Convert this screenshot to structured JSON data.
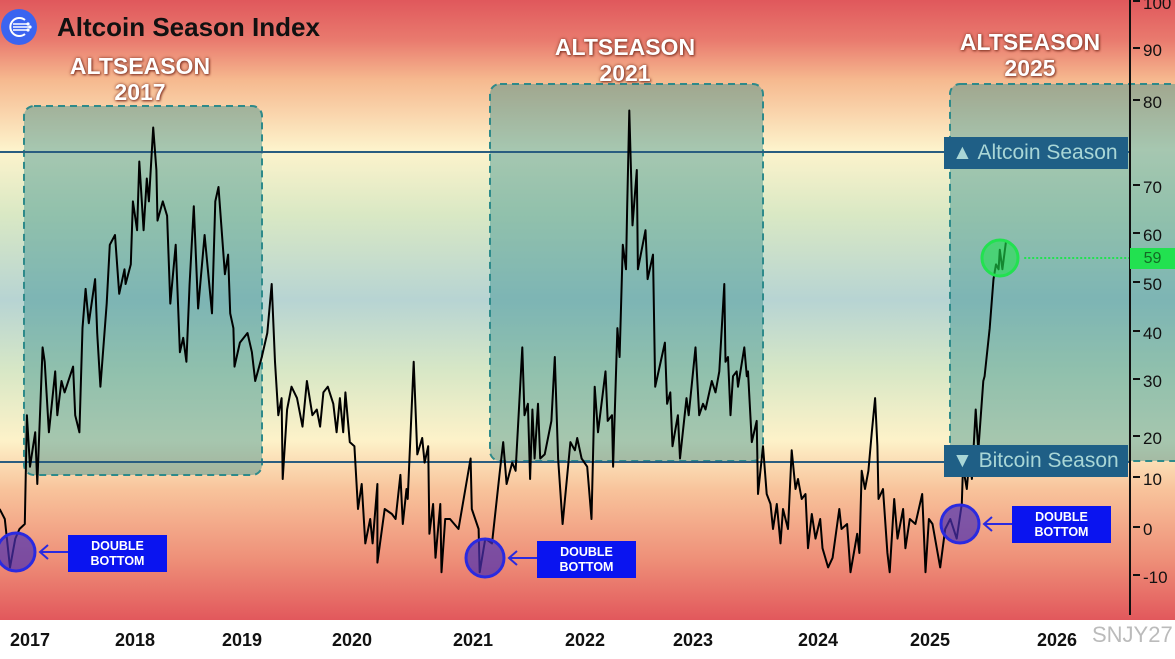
{
  "header": {
    "title": "Altcoin Season Index",
    "logo_icon": "network-logo-icon"
  },
  "annotations": {
    "altseasons": [
      {
        "line1": "ALTSEASON",
        "line2": "2017"
      },
      {
        "line1": "ALTSEASON",
        "line2": "2021"
      },
      {
        "line1": "ALTSEASON",
        "line2": "2025"
      }
    ],
    "double_bottom": [
      {
        "line1": "DOUBLE",
        "line2": "BOTTOM"
      },
      {
        "line1": "DOUBLE",
        "line2": "BOTTOM"
      },
      {
        "line1": "DOUBLE",
        "line2": "BOTTOM"
      }
    ],
    "altcoin_season": {
      "icon": "triangle-up-icon",
      "label": "Altcoin Season"
    },
    "bitcoin_season": {
      "icon": "triangle-down-icon",
      "label": "Bitcoin Season"
    },
    "current_value": "59",
    "watermark": "SNJY27"
  },
  "colors": {
    "line": "#000000",
    "altseason_zone": "#2e8a8a",
    "threshold_line": "#2a5d80",
    "current_marker": "#22e150",
    "double_bottom": "#2a2ae0"
  },
  "chart_data": {
    "type": "line",
    "title": "Altcoin Season Index",
    "xlabel": "",
    "ylabel": "",
    "x_ticks": [
      "2017",
      "2018",
      "2019",
      "2020",
      "2021",
      "2022",
      "2023",
      "2024",
      "2025",
      "2026"
    ],
    "y_ticks": [
      100,
      90,
      80,
      70,
      60,
      50,
      40,
      30,
      20,
      10,
      0,
      -10
    ],
    "ylim": [
      -10,
      100
    ],
    "grid": false,
    "series": [
      {
        "x": [
          2016.71,
          2016.76,
          2016.81,
          2016.86,
          2016.9,
          2016.95,
          2016.97,
          2017.0,
          2017.05,
          2017.07,
          2017.12,
          2017.14,
          2017.18,
          2017.24,
          2017.26,
          2017.3,
          2017.33,
          2017.41,
          2017.43,
          2017.47,
          2017.5,
          2017.53,
          2017.56,
          2017.62,
          2017.64,
          2017.67,
          2017.73,
          2017.76,
          2017.81,
          2017.85,
          2017.9,
          2017.91,
          2017.96,
          2017.98,
          2018.02,
          2018.04,
          2018.08,
          2018.11,
          2018.13,
          2018.17,
          2018.2,
          2018.21,
          2018.26,
          2018.3,
          2018.33,
          2018.38,
          2018.42,
          2018.45,
          2018.48,
          2018.51,
          2018.55,
          2018.59,
          2018.65,
          2018.72,
          2018.75,
          2018.78,
          2018.84,
          2018.87,
          2018.89,
          2018.92,
          2018.93,
          2018.98,
          2019.05,
          2019.09,
          2019.12,
          2019.18,
          2019.23,
          2019.27,
          2019.3,
          2019.33,
          2019.36,
          2019.37,
          2019.41,
          2019.45,
          2019.5,
          2019.55,
          2019.59,
          2019.64,
          2019.68,
          2019.71,
          2019.74,
          2019.78,
          2019.83,
          2019.86,
          2019.89,
          2019.92,
          2019.94,
          2019.98,
          2020.02,
          2020.05,
          2020.08,
          2020.11,
          2020.15,
          2020.17,
          2020.21,
          2020.21,
          2020.27,
          2020.33,
          2020.36,
          2020.4,
          2020.42,
          2020.45,
          2020.46,
          2020.51,
          2020.54,
          2020.58,
          2020.6,
          2020.63,
          2020.64,
          2020.67,
          2020.69,
          2020.73,
          2020.74,
          2020.77,
          2020.81,
          2020.88,
          2020.98,
          2020.99,
          2021.05,
          2021.06,
          2021.11,
          2021.17,
          2021.24,
          2021.27,
          2021.3,
          2021.35,
          2021.38,
          2021.44,
          2021.46,
          2021.49,
          2021.51,
          2021.53,
          2021.55,
          2021.58,
          2021.6,
          2021.64,
          2021.7,
          2021.73,
          2021.76,
          2021.8,
          2021.87,
          2021.91,
          2021.93,
          2021.97,
          2022.02,
          2022.06,
          2022.09,
          2022.12,
          2022.19,
          2022.21,
          2022.25,
          2022.26,
          2022.3,
          2022.32,
          2022.35,
          2022.38,
          2022.39,
          2022.41,
          2022.44,
          2022.48,
          2022.49,
          2022.56,
          2022.58,
          2022.63,
          2022.65,
          2022.74,
          2022.76,
          2022.79,
          2022.81,
          2022.86,
          2022.88,
          2022.94,
          2022.96,
          2023.02,
          2023.05,
          2023.08,
          2023.1,
          2023.15,
          2023.18,
          2023.21,
          2023.25,
          2023.26,
          2023.28,
          2023.3,
          2023.32,
          2023.35,
          2023.36,
          2023.41,
          2023.43,
          2023.44,
          2023.47,
          2023.51,
          2023.52,
          2023.56,
          2023.59,
          2023.62,
          2023.64,
          2023.67,
          2023.7,
          2023.72,
          2023.76,
          2023.79,
          2023.82,
          2023.84,
          2023.87,
          2023.9,
          2023.92,
          2023.95,
          2023.98,
          2024.02,
          2024.04,
          2024.09,
          2024.13,
          2024.19,
          2024.21,
          2024.26,
          2024.29,
          2024.35,
          2024.37,
          2024.39,
          2024.42,
          2024.45,
          2024.48,
          2024.51,
          2024.53,
          2024.54,
          2024.58,
          2024.62,
          2024.64,
          2024.68,
          2024.71,
          2024.76,
          2024.78,
          2024.82,
          2024.87,
          2024.93,
          2024.96,
          2024.99,
          2025.02,
          2025.08,
          2025.12,
          2025.16,
          2025.21,
          2025.25,
          2025.26,
          2025.29,
          2025.31,
          2025.33,
          2025.36,
          2025.38,
          2025.42,
          2025.43,
          2025.47,
          2025.5,
          2025.52,
          2025.54,
          2025.55,
          2025.57,
          2025.6
        ],
        "y": [
          4,
          2,
          -8,
          -2,
          0,
          1,
          24,
          13,
          21,
          9,
          37,
          34,
          21,
          32,
          24,
          30,
          28,
          33,
          24,
          21,
          41,
          49,
          42,
          51,
          40,
          29,
          46,
          58,
          60,
          48,
          53,
          50,
          54,
          67,
          61,
          73,
          61,
          71,
          67,
          77,
          72,
          63,
          67,
          64,
          46,
          58,
          36,
          39,
          34,
          50,
          66,
          45,
          60,
          44,
          67,
          70,
          52,
          56,
          44,
          41,
          33,
          38,
          40,
          36,
          30,
          35,
          40,
          50,
          34,
          24,
          27,
          10,
          25,
          29,
          27,
          22,
          30,
          24,
          25,
          22,
          28,
          29,
          26,
          21,
          27,
          21,
          28,
          19,
          18,
          4,
          9,
          -3,
          2,
          -3,
          9,
          -7,
          4,
          3,
          2,
          11,
          1,
          8,
          6,
          34,
          16,
          20,
          14,
          18,
          -1,
          5,
          -6,
          5,
          -9,
          2,
          2,
          0,
          15,
          4,
          0,
          -9,
          -2,
          -3,
          12,
          19,
          9,
          14,
          12,
          37,
          24,
          26,
          10,
          25,
          15,
          26,
          15,
          16,
          23,
          35,
          15,
          1,
          19,
          17,
          20,
          15,
          13,
          2,
          29,
          21,
          32,
          23,
          24,
          13,
          41,
          35,
          58,
          53,
          65,
          79,
          62,
          72,
          53,
          61,
          51,
          56,
          29,
          38,
          26,
          28,
          18,
          24,
          15,
          27,
          24,
          37,
          24,
          26,
          25,
          30,
          28,
          32,
          50,
          34,
          35,
          24,
          31,
          32,
          29,
          37,
          31,
          32,
          19,
          23,
          7,
          18,
          7,
          5,
          0,
          5,
          -3,
          4,
          0,
          17,
          8,
          10,
          6,
          7,
          -4,
          3,
          -2,
          2,
          -4,
          -8,
          -6,
          4,
          0,
          1,
          -9,
          -1,
          -5,
          12,
          8,
          12,
          21,
          27,
          18,
          6,
          8,
          -5,
          -9,
          6,
          -2,
          4,
          -4,
          2,
          1,
          7,
          -9,
          2,
          1,
          -8,
          0,
          2,
          -2,
          5,
          13,
          8,
          15,
          10,
          25,
          17,
          30,
          31,
          41,
          51,
          54,
          53,
          57,
          53,
          59
        ]
      }
    ],
    "thresholds": [
      {
        "label": "Altcoin Season"
      },
      {
        "label": "Bitcoin Season"
      }
    ]
  }
}
